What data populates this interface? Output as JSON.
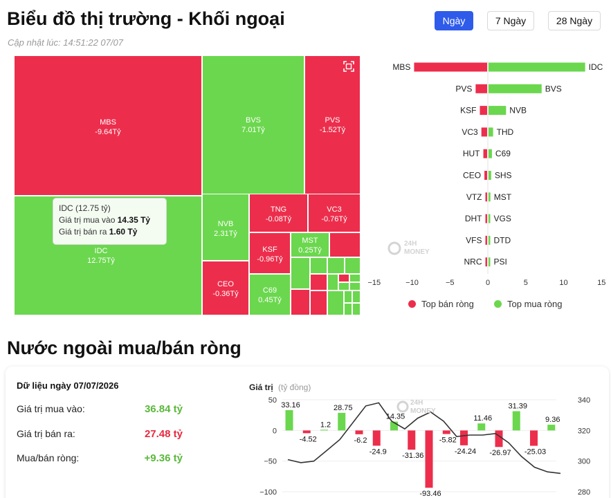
{
  "header": {
    "title": "Biểu đồ thị trường - Khối ngoại",
    "updated": "Cập nhật lúc: 14:51:22 07/07",
    "tabs": [
      {
        "label": "Ngày",
        "active": true
      },
      {
        "label": "7 Ngày",
        "active": false
      },
      {
        "label": "28 Ngày",
        "active": false
      }
    ]
  },
  "treemap": {
    "cells": [
      {
        "code": "MBS",
        "value": "-9.64Tỷ",
        "color": "red"
      },
      {
        "code": "BVS",
        "value": "7.01Tỷ",
        "color": "green"
      },
      {
        "code": "PVS",
        "value": "-1.52Tỷ",
        "color": "red"
      },
      {
        "code": "IDC",
        "value": "12.75Tỷ",
        "color": "green"
      },
      {
        "code": "NVB",
        "value": "2.31Tỷ",
        "color": "green"
      },
      {
        "code": "TNG",
        "value": "-0.08Tỷ",
        "color": "red"
      },
      {
        "code": "VC3",
        "value": "-0.76Tỷ",
        "color": "red"
      },
      {
        "code": "KSF",
        "value": "-0.96Tỷ",
        "color": "red"
      },
      {
        "code": "MST",
        "value": "0.25Tỷ",
        "color": "green"
      },
      {
        "code": "CEO",
        "value": "-0.36Tỷ",
        "color": "red"
      },
      {
        "code": "C69",
        "value": "0.45Tỷ",
        "color": "green"
      }
    ],
    "tooltip": {
      "title": "IDC (12.75 tỷ)",
      "buy_label": "Giá trị mua vào",
      "buy_value": "14.35 Tỷ",
      "sell_label": "Giá trị bán ra",
      "sell_value": "1.60 Tỷ"
    },
    "expand_icon": "expand-icon"
  },
  "bar_chart": {
    "sell_codes": [
      "MBS",
      "PVS",
      "KSF",
      "VC3",
      "HUT",
      "CEO",
      "VTZ",
      "DHT",
      "VFS",
      "NRC"
    ],
    "sell_values": [
      -9.64,
      -1.52,
      -0.96,
      -0.76,
      -0.5,
      -0.36,
      -0.2,
      -0.15,
      -0.1,
      -0.05
    ],
    "buy_codes": [
      "IDC",
      "BVS",
      "NVB",
      "THD",
      "C69",
      "SHS",
      "MST",
      "VGS",
      "DTD",
      "PSI"
    ],
    "buy_values": [
      12.75,
      7.01,
      2.31,
      0.6,
      0.45,
      0.35,
      0.25,
      0.2,
      0.12,
      0.05
    ],
    "xticks": [
      "−15",
      "−10",
      "−5",
      "0",
      "5",
      "10",
      "15"
    ],
    "xlim": [
      -15,
      15
    ],
    "legend_sell": "Top bán ròng",
    "legend_buy": "Top mua ròng",
    "colors": {
      "sell": "#ec2e4c",
      "buy": "#6bd74e"
    },
    "watermark": [
      "24H",
      "MONEY"
    ]
  },
  "section_title": "Nước ngoài mua/bán ròng",
  "summary": {
    "date": "Dữ liệu ngày 07/07/2026",
    "buy_label": "Giá trị mua vào:",
    "buy_value": "36.84 tỷ",
    "sell_label": "Giá trị bán ra:",
    "sell_value": "27.48 tỷ",
    "net_label": "Mua/bán ròng:",
    "net_value": "+9.36 tỷ"
  },
  "chart_data": {
    "type": "bar",
    "title": "Giá trị",
    "unit": "(tỷ đồng)",
    "values": [
      33.16,
      -4.52,
      1.2,
      28.75,
      -6.2,
      -24.9,
      14.35,
      -31.36,
      -93.46,
      -5.82,
      -24.24,
      11.46,
      -26.97,
      31.39,
      -25.03,
      9.36
    ],
    "labels": [
      "33.16",
      "-4.52",
      "1.2",
      "28.75",
      "-6.2",
      "-24.9",
      "14.35",
      "-31.36",
      "-93.46",
      "-5.82",
      "-24.24",
      "11.46",
      "-26.97",
      "31.39",
      "-25.03",
      "9.36"
    ],
    "line_values": [
      301,
      299,
      300,
      307,
      314,
      325,
      336,
      338,
      326,
      321,
      328,
      332,
      326,
      316,
      317,
      317,
      318,
      312,
      303,
      296,
      293,
      292
    ],
    "ylim_left": [
      -100,
      50
    ],
    "yticks_left": [
      "50",
      "0",
      "−50",
      "−100"
    ],
    "ylim_right": [
      280,
      340
    ],
    "yticks_right": [
      "340",
      "320",
      "300",
      "280"
    ],
    "colors": {
      "pos": "#6bd74e",
      "neg": "#ec2e4c",
      "line": "#333333"
    }
  }
}
